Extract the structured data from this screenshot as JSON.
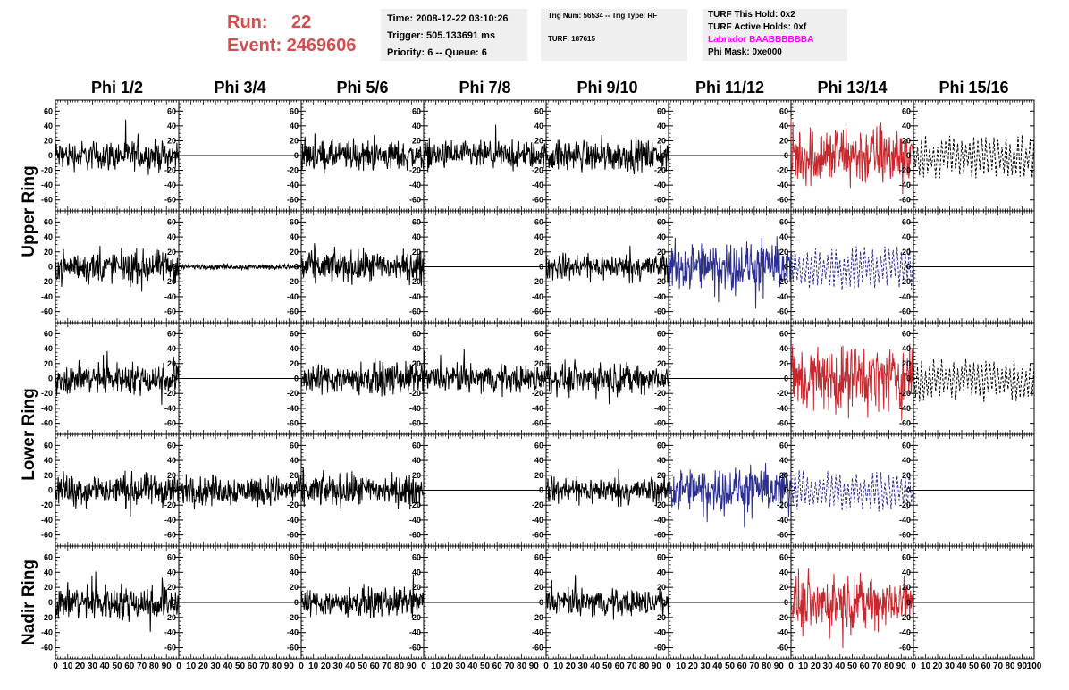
{
  "header": {
    "run_label": "Run:",
    "run_value": "22",
    "event_label": "Event:",
    "event_value": "2469606",
    "time": "Time: 2008-12-22 03:10:26",
    "trigger": "Trigger: 505.133691 ms",
    "priority": "Priority: 6 -- Queue: 6",
    "trig_num": "Trig Num: 56534 -- Trig Type: RF",
    "turf": "TURF: 187615",
    "turf_hold": "TURF This Hold: 0x2",
    "turf_active": "TURF Active Holds: 0xf",
    "labrador": "Labrador BAABBBBBBA",
    "phi_mask": "Phi Mask: 0xe000"
  },
  "colors": {
    "black": "#000000",
    "red": "#c8282d",
    "blue": "#2b2f8f",
    "labrador": "#ff00ff",
    "header_red": "#d05050"
  },
  "chart_data": {
    "type": "line",
    "columns": [
      "Phi 1/2",
      "Phi 3/4",
      "Phi 5/6",
      "Phi 7/8",
      "Phi 9/10",
      "Phi 11/12",
      "Phi 13/14",
      "Phi 15/16"
    ],
    "rows": [
      "Upper Ring",
      "Upper Ring",
      "Lower Ring",
      "Lower Ring",
      "Nadir Ring"
    ],
    "row_labels": [
      {
        "text": "Upper Ring",
        "rows": [
          0,
          1
        ]
      },
      {
        "text": "Lower Ring",
        "rows": [
          2,
          3
        ]
      },
      {
        "text": "Nadir Ring",
        "rows": [
          4
        ]
      }
    ],
    "ylim": [
      -70,
      70
    ],
    "yticks": [
      -60,
      -40,
      -20,
      0,
      20,
      40,
      60
    ],
    "ytick_labels": [
      "-60",
      "-40",
      "-20",
      "0",
      "20",
      "40",
      "60"
    ],
    "xlim": [
      0,
      100
    ],
    "xticks": [
      0,
      10,
      20,
      30,
      40,
      50,
      60,
      70,
      80,
      90
    ],
    "xtick_labels": [
      "0",
      "10",
      "20",
      "30",
      "40",
      "50",
      "60",
      "70",
      "80",
      "90"
    ],
    "x_end_label": "100",
    "panels": [
      [
        {
          "style": "solid",
          "color": "black",
          "amp": 17
        },
        {
          "style": "flat",
          "color": "black",
          "amp": 0
        },
        {
          "style": "solid",
          "color": "black",
          "amp": 17
        },
        {
          "style": "solid",
          "color": "black",
          "amp": 16
        },
        {
          "style": "solid",
          "color": "black",
          "amp": 18
        },
        {
          "style": "flat",
          "color": "black",
          "amp": 0
        },
        {
          "style": "solid",
          "color": "red",
          "amp": 36
        },
        {
          "style": "dashed",
          "color": "black",
          "amp": 30
        }
      ],
      [
        {
          "style": "solid",
          "color": "black",
          "amp": 18
        },
        {
          "style": "solid",
          "color": "black",
          "amp": 3
        },
        {
          "style": "solid",
          "color": "black",
          "amp": 18
        },
        {
          "style": "flat",
          "color": "black",
          "amp": 0
        },
        {
          "style": "solid",
          "color": "black",
          "amp": 15
        },
        {
          "style": "solid",
          "color": "blue",
          "amp": 28
        },
        {
          "style": "dashed",
          "color": "blue",
          "amp": 30
        },
        {
          "style": "flat",
          "color": "black",
          "amp": 0
        }
      ],
      [
        {
          "style": "solid",
          "color": "black",
          "amp": 18
        },
        {
          "style": "flat",
          "color": "black",
          "amp": 0
        },
        {
          "style": "solid",
          "color": "black",
          "amp": 18
        },
        {
          "style": "solid",
          "color": "black",
          "amp": 16
        },
        {
          "style": "solid",
          "color": "black",
          "amp": 17
        },
        {
          "style": "flat",
          "color": "black",
          "amp": 0
        },
        {
          "style": "solid",
          "color": "red",
          "amp": 38
        },
        {
          "style": "dashed",
          "color": "black",
          "amp": 30
        }
      ],
      [
        {
          "style": "solid",
          "color": "black",
          "amp": 19
        },
        {
          "style": "solid",
          "color": "black",
          "amp": 17
        },
        {
          "style": "solid",
          "color": "black",
          "amp": 18
        },
        {
          "style": "flat",
          "color": "black",
          "amp": 0
        },
        {
          "style": "solid",
          "color": "black",
          "amp": 15
        },
        {
          "style": "solid",
          "color": "blue",
          "amp": 25
        },
        {
          "style": "dashed",
          "color": "blue",
          "amp": 30
        },
        {
          "style": "flat",
          "color": "black",
          "amp": 0
        }
      ],
      [
        {
          "style": "solid",
          "color": "black",
          "amp": 20
        },
        {
          "style": "flat",
          "color": "black",
          "amp": 0
        },
        {
          "style": "solid",
          "color": "black",
          "amp": 16
        },
        {
          "style": "flat",
          "color": "black",
          "amp": 0
        },
        {
          "style": "solid",
          "color": "black",
          "amp": 15
        },
        {
          "style": "flat",
          "color": "black",
          "amp": 0
        },
        {
          "style": "solid",
          "color": "red",
          "amp": 30
        },
        {
          "style": "flat",
          "color": "black",
          "amp": 0
        }
      ]
    ]
  }
}
